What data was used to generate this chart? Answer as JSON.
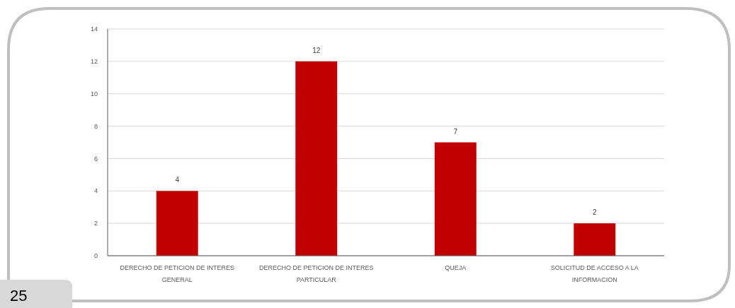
{
  "chart_data": {
    "type": "bar",
    "categories": [
      "DERECHO DE PETICION DE INTERES GENERAL",
      "DERECHO DE PETICION DE INTERES PARTICULAR",
      "QUEJA",
      "SOLICITUD DE ACCESO A LA INFORMACION"
    ],
    "values": [
      4,
      12,
      7,
      2
    ],
    "color": "#c00000",
    "ylim": [
      0,
      14
    ],
    "yticks": [
      0,
      2,
      4,
      6,
      8,
      10,
      12,
      14
    ],
    "grid": "y",
    "data_labels": true,
    "annotations": [
      "25"
    ]
  }
}
